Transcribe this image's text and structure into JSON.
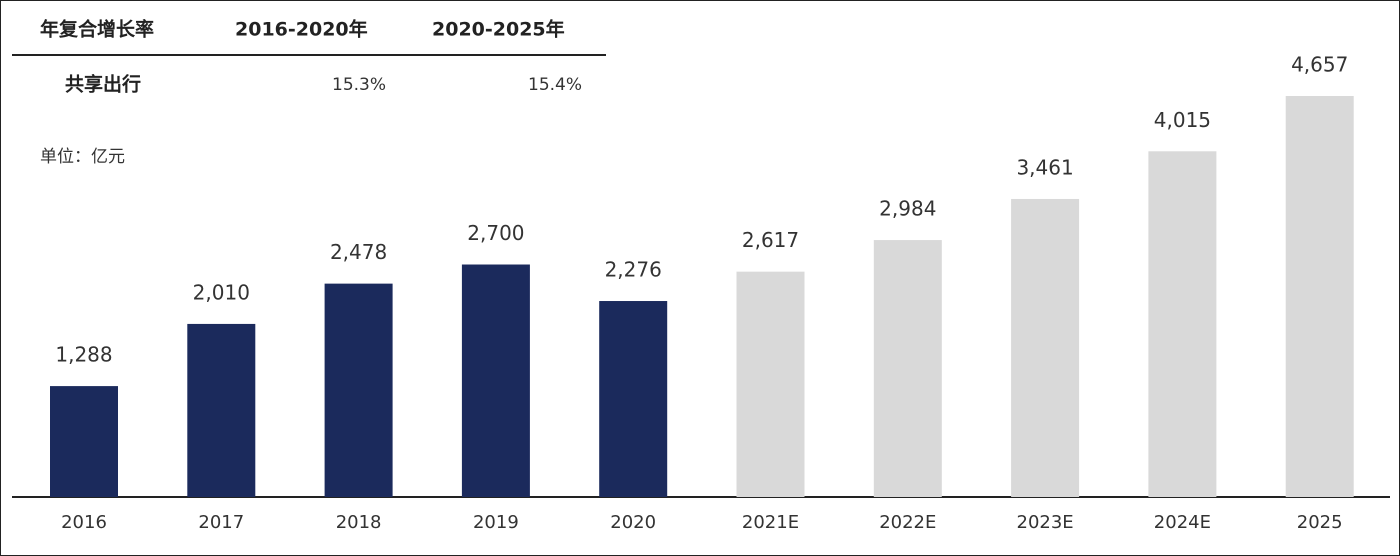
{
  "chart_data": {
    "type": "bar",
    "categories": [
      "2016",
      "2017",
      "2018",
      "2019",
      "2020",
      "2021E",
      "2022E",
      "2023E",
      "2024E",
      "2025"
    ],
    "values": [
      1288,
      2010,
      2478,
      2700,
      2276,
      2617,
      2984,
      3461,
      4015,
      4657
    ],
    "value_labels": [
      "1,288",
      "2,010",
      "2,478",
      "2,700",
      "2,276",
      "2,617",
      "2,984",
      "3,461",
      "4,015",
      "4,657"
    ],
    "colors": [
      "#1b2a5c",
      "#1b2a5c",
      "#1b2a5c",
      "#1b2a5c",
      "#1b2a5c",
      "#d9d9d9",
      "#d9d9d9",
      "#d9d9d9",
      "#d9d9d9",
      "#d9d9d9"
    ],
    "unit_label": "单位：亿元",
    "cagr_table": {
      "header": [
        "年复合增长率",
        "2016-2020年",
        "2020-2025年"
      ],
      "rows": [
        [
          "共享出行",
          "15.3%",
          "15.4%"
        ]
      ]
    }
  }
}
